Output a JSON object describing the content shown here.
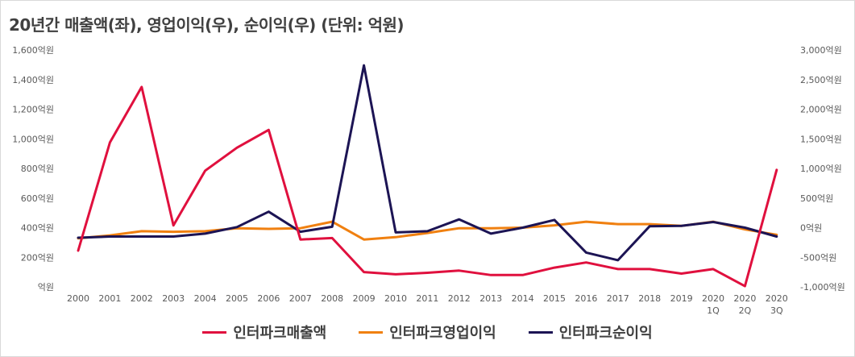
{
  "title": "20년간 매출액(좌), 영업이익(우), 순이익(우) (단위: 억원)",
  "chart_data": {
    "type": "line",
    "title": "20년간 매출액(좌), 영업이익(우), 순이익(우) (단위: 억원)",
    "categories": [
      "2000",
      "2001",
      "2002",
      "2003",
      "2004",
      "2005",
      "2006",
      "2007",
      "2008",
      "2009",
      "2010",
      "2011",
      "2012",
      "2013",
      "2014",
      "2015",
      "2016",
      "2017",
      "2018",
      "2019",
      "2020 1Q",
      "2020 2Q",
      "2020 3Q"
    ],
    "category_lines": [
      [
        "2000"
      ],
      [
        "2001"
      ],
      [
        "2002"
      ],
      [
        "2003"
      ],
      [
        "2004"
      ],
      [
        "2005"
      ],
      [
        "2006"
      ],
      [
        "2007"
      ],
      [
        "2008"
      ],
      [
        "2009"
      ],
      [
        "2010"
      ],
      [
        "2011"
      ],
      [
        "2012"
      ],
      [
        "2013"
      ],
      [
        "2014"
      ],
      [
        "2015"
      ],
      [
        "2016"
      ],
      [
        "2017"
      ],
      [
        "2018"
      ],
      [
        "2019"
      ],
      [
        "2020",
        "1Q"
      ],
      [
        "2020",
        "2Q"
      ],
      [
        "2020",
        "3Q"
      ]
    ],
    "y_left": {
      "min": 0,
      "max": 1600,
      "ticks": [
        "억원",
        "200억원",
        "400억원",
        "600억원",
        "800억원",
        "1,000억원",
        "1,200억원",
        "1,400억원",
        "1,600억원"
      ]
    },
    "y_right": {
      "min": -1000,
      "max": 3000,
      "ticks": [
        "-1,000억원",
        "-500억원",
        "0억원",
        "500억원",
        "1,000억원",
        "1,500억원",
        "2,000억원",
        "2,500억원",
        "3,000억원"
      ]
    },
    "grid": false,
    "legend_position": "bottom",
    "series": [
      {
        "name": "인터파크매출액",
        "axis": "left",
        "color": "#e0103e",
        "values": [
          245,
          975,
          1350,
          415,
          785,
          940,
          1060,
          320,
          330,
          100,
          85,
          95,
          110,
          80,
          80,
          130,
          165,
          120,
          120,
          90,
          120,
          5,
          790
        ]
      },
      {
        "name": "인터파크영업이익",
        "axis": "right",
        "color": "#f08010",
        "values": [
          -180,
          -130,
          -60,
          -70,
          -60,
          -10,
          -20,
          -10,
          100,
          -200,
          -160,
          -90,
          -10,
          -10,
          0,
          40,
          100,
          60,
          60,
          30,
          100,
          -30,
          -120
        ]
      },
      {
        "name": "인터파크순이익",
        "axis": "right",
        "color": "#1c1454",
        "values": [
          -170,
          -150,
          -150,
          -150,
          -100,
          10,
          270,
          -70,
          15,
          2740,
          -80,
          -60,
          140,
          -100,
          0,
          130,
          -420,
          -550,
          25,
          30,
          95,
          0,
          -150
        ]
      }
    ]
  }
}
